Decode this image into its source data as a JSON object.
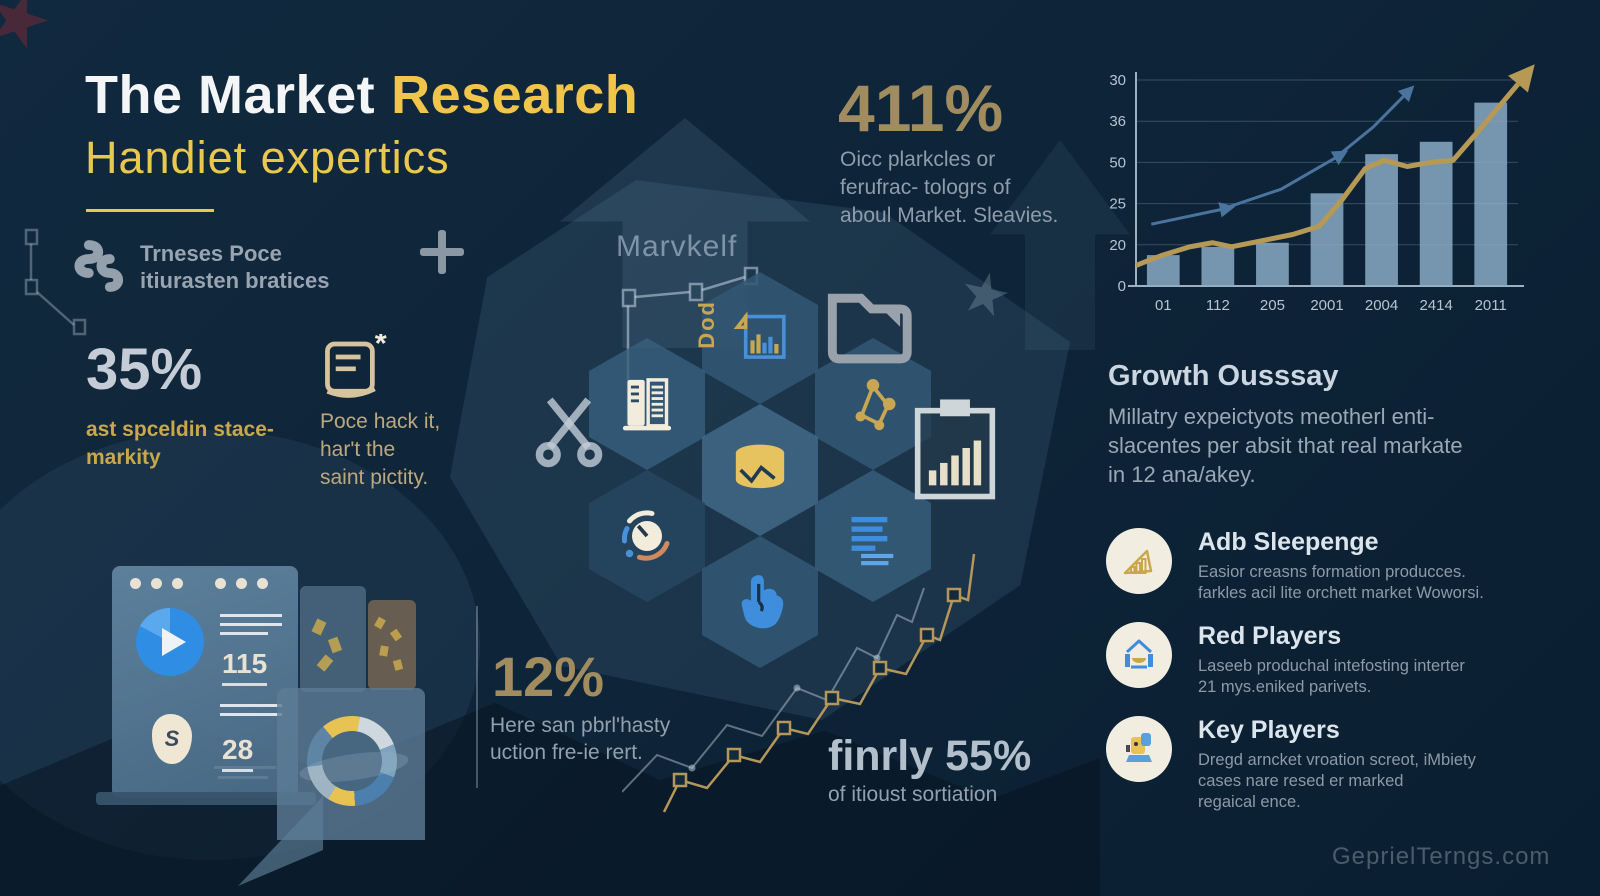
{
  "title": {
    "part_white": "The Market",
    "part_yellow": "Research",
    "subtitle": "Handiet expertics"
  },
  "brand": {
    "line1": "Trneses Poce",
    "line2": "itiurasten bratices"
  },
  "center_label": "Marvkelf",
  "dod_label": "Dod",
  "stat_411": {
    "value": "411%",
    "lines": [
      "Oicc plarkcles or",
      "ferufrac- tologrs of",
      "aboul Market. Sleavies."
    ]
  },
  "stat_35": {
    "value": "35%",
    "lines": [
      "ast spceldin stace-",
      "markity"
    ]
  },
  "note": {
    "lines": [
      "Poce hack it,",
      "har't the",
      "saint pictity."
    ]
  },
  "stat_12": {
    "value": "12%",
    "lines": [
      "Here san pbrl'hasty",
      "uction fre-ie rert."
    ]
  },
  "stat_55": {
    "prefix": "finrly",
    "value": "55%",
    "desc": "of itioust sortiation"
  },
  "laptop": {
    "num1": "115",
    "num2": "28",
    "currency": "S"
  },
  "growth": {
    "heading": "Growth Ousssay",
    "lines": [
      "Millatry expeictyots  meotherl enti-",
      "slacentes per absit that real markate",
      "in 12 ana/akey."
    ],
    "items": [
      {
        "title": "Adb Sleepenge",
        "lines": [
          "Easior creasns formation producces.",
          "farkles acil lite orchett market Woworsi."
        ]
      },
      {
        "title": "Red Players",
        "lines": [
          "Laseeb produchal intefosting interter",
          "21 mys.eniked parivets."
        ]
      },
      {
        "title": "Key Players",
        "lines": [
          "Dregd arncket vroation screot, iMbiety",
          "cases nare resed er marked",
          "regaical ence."
        ]
      }
    ]
  },
  "watermark": "GeprielTerngs.com",
  "colors": {
    "background": "#0e2336",
    "accent_yellow": "#e9c84d",
    "muted_gold": "#a18c60",
    "silver": "#c6ccd5",
    "body_gray": "#93a1b0",
    "bar_blue": "#8aaac4",
    "line_gold": "#b59955",
    "line_blue": "#4a749e",
    "icon_blue": "#3f8edd",
    "cream": "#f2ecdc"
  },
  "chart_data": [
    {
      "type": "bar",
      "title": "",
      "categories": [
        "01",
        "112",
        "205",
        "2001",
        "2004",
        "2414",
        "2011"
      ],
      "values": [
        15,
        19,
        21,
        45,
        64,
        70,
        89
      ],
      "ylim": [
        0,
        100
      ],
      "y_tick_labels": [
        "30",
        "36",
        "50",
        "25",
        "20",
        "0"
      ],
      "bar_color": "rgba(138,170,196,0.85)",
      "grid": true,
      "xlabel": "",
      "ylabel": "",
      "lines": [
        {
          "name": "gold-trend",
          "color": "#b59955",
          "width": 5,
          "points": [
            [
              0,
              10
            ],
            [
              7,
              15
            ],
            [
              14,
              19
            ],
            [
              20,
              21
            ],
            [
              25,
              19
            ],
            [
              33,
              22
            ],
            [
              41,
              25
            ],
            [
              48,
              29
            ],
            [
              54,
              42
            ],
            [
              60,
              57
            ],
            [
              65,
              61
            ],
            [
              71,
              58
            ],
            [
              77,
              60
            ],
            [
              83,
              61
            ],
            [
              90,
              76
            ],
            [
              100,
              98
            ]
          ],
          "arrow_at": [
            15
          ]
        },
        {
          "name": "blue-trend",
          "color": "#4a749e",
          "width": 3,
          "points": [
            [
              4,
              30
            ],
            [
              22,
              37
            ],
            [
              38,
              47
            ],
            [
              52,
              62
            ],
            [
              62,
              77
            ],
            [
              70,
              92
            ]
          ],
          "arrow_at": [
            1,
            3,
            5
          ]
        }
      ]
    },
    {
      "type": "pie",
      "name": "donut-decoration",
      "slices": [
        {
          "color": "#e8c252",
          "value": 14
        },
        {
          "color": "#cfd8de",
          "value": 16
        },
        {
          "color": "#7da3bd",
          "value": 12
        },
        {
          "color": "#4b7fae",
          "value": 18
        },
        {
          "color": "#e8c252",
          "value": 10
        },
        {
          "color": "#9fb4c2",
          "value": 14
        },
        {
          "color": "#5e86a4",
          "value": 16
        }
      ]
    }
  ]
}
